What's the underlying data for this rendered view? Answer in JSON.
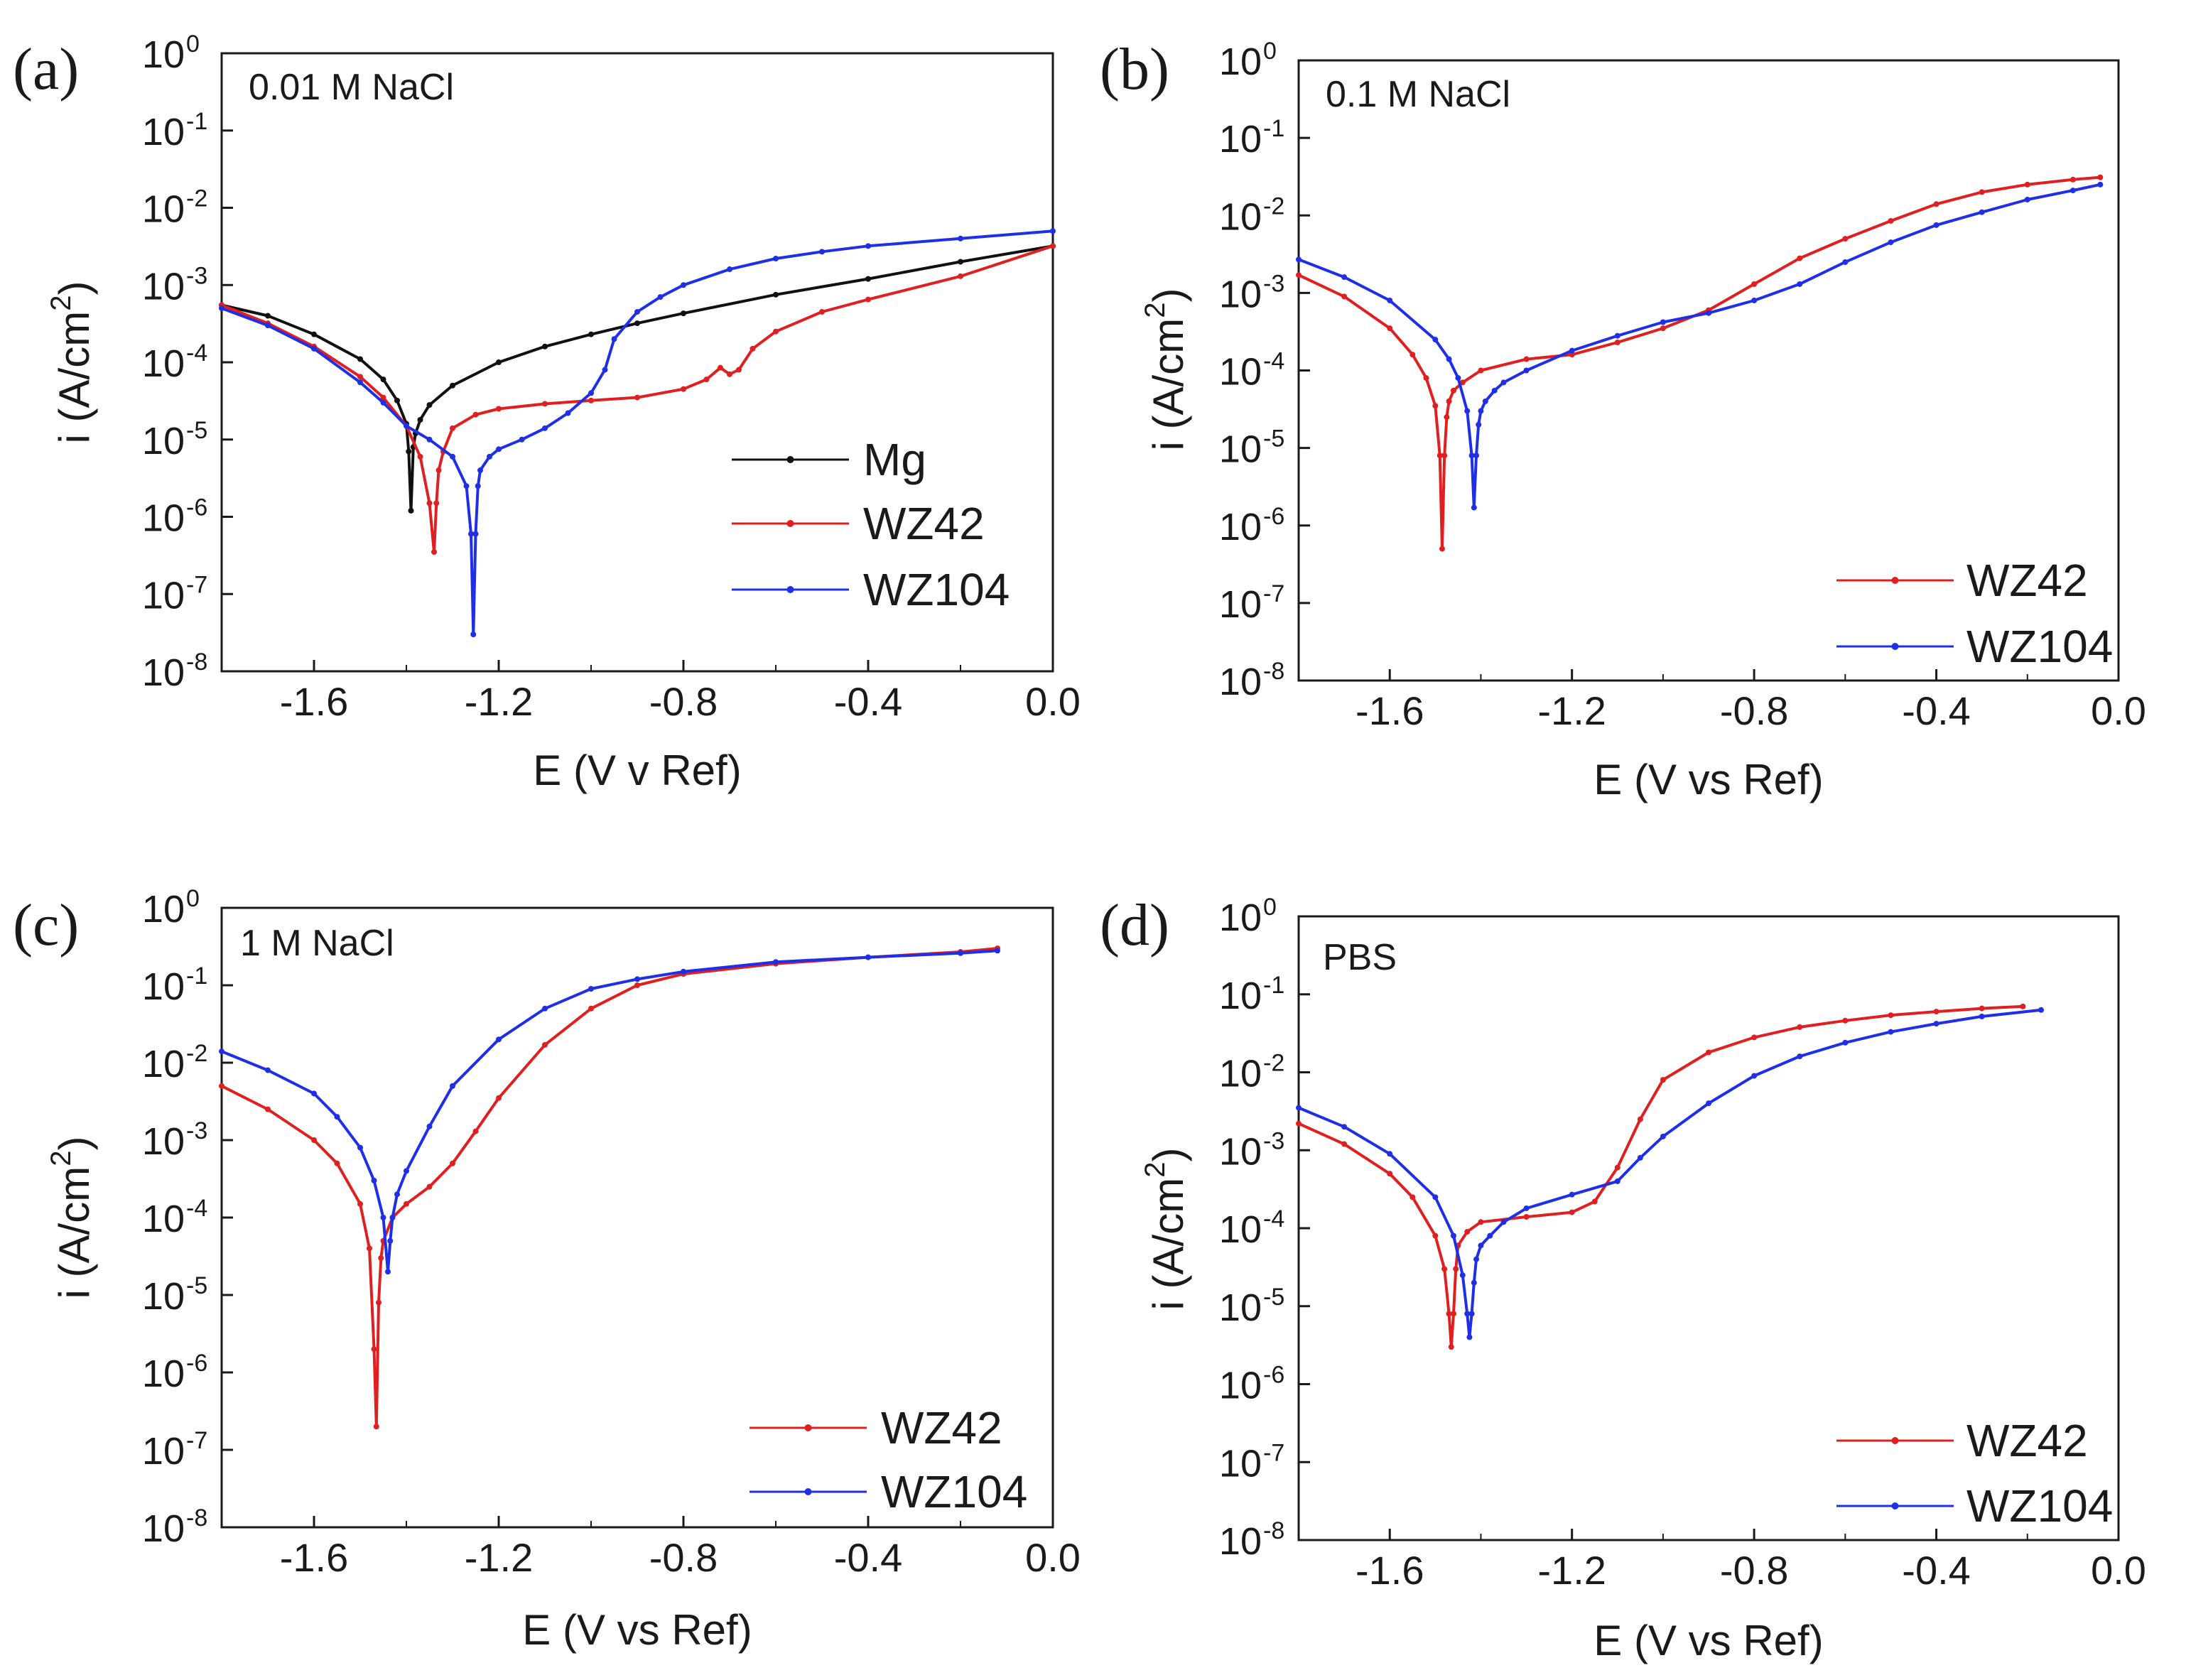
{
  "figure": {
    "background": "#ffffff"
  },
  "chart_data": [
    {
      "id": "a",
      "type": "line",
      "panel_label": "(a)",
      "annotation": "0.01 M NaCl",
      "xlabel": "E (V v Ref)",
      "ylabel": "i (A/cm",
      "ylabel_sup": "2",
      "ylabel_end": ")",
      "xlim": [
        -1.8,
        0.0
      ],
      "ylim": [
        1e-08,
        1
      ],
      "yscale": "log",
      "x_ticks": [
        -1.6,
        -1.2,
        -0.8,
        -0.4,
        0.0
      ],
      "x_tick_labels": [
        "-1.6",
        "-1.2",
        "-0.8",
        "-0.4",
        "0.0"
      ],
      "y_tick_exponents": [
        "0",
        "-1",
        "-2",
        "-3",
        "-4",
        "-5",
        "-6",
        "-7",
        "-8"
      ],
      "y_tick_base": "10",
      "grid": false,
      "legend_position": "bottom-right",
      "series": [
        {
          "name": "Mg",
          "color": "#111111",
          "x": [
            -1.8,
            -1.7,
            -1.6,
            -1.5,
            -1.45,
            -1.42,
            -1.4,
            -1.395,
            -1.39,
            -1.385,
            -1.38,
            -1.37,
            -1.35,
            -1.3,
            -1.2,
            -1.1,
            -1.0,
            -0.9,
            -0.8,
            -0.6,
            -0.4,
            -0.2,
            0.0
          ],
          "y": [
            0.00055,
            0.0004,
            0.00023,
            0.00011,
            6e-05,
            3.2e-05,
            1.6e-05,
            7e-06,
            1.2e-06,
            8e-06,
            1.2e-05,
            1.8e-05,
            2.8e-05,
            5e-05,
            0.0001,
            0.00016,
            0.00023,
            0.00032,
            0.00043,
            0.00075,
            0.0012,
            0.002,
            0.0032
          ]
        },
        {
          "name": "WZ42",
          "color": "#e02020",
          "x": [
            -1.8,
            -1.7,
            -1.6,
            -1.5,
            -1.45,
            -1.4,
            -1.37,
            -1.35,
            -1.34,
            -1.335,
            -1.33,
            -1.32,
            -1.3,
            -1.25,
            -1.2,
            -1.1,
            -1.0,
            -0.9,
            -0.8,
            -0.75,
            -0.72,
            -0.7,
            -0.68,
            -0.65,
            -0.6,
            -0.5,
            -0.4,
            -0.2,
            0.0
          ],
          "y": [
            0.00055,
            0.00032,
            0.00016,
            6.5e-05,
            3.5e-05,
            1.5e-05,
            6e-06,
            1.5e-06,
            3.5e-07,
            1.5e-06,
            4e-06,
            7e-06,
            1.4e-05,
            2.1e-05,
            2.5e-05,
            2.9e-05,
            3.2e-05,
            3.5e-05,
            4.5e-05,
            6e-05,
            8.5e-05,
            7e-05,
            8e-05,
            0.00015,
            0.00025,
            0.00045,
            0.00065,
            0.0013,
            0.0032
          ]
        },
        {
          "name": "WZ104",
          "color": "#1f2fe8",
          "x": [
            -1.8,
            -1.7,
            -1.6,
            -1.5,
            -1.45,
            -1.4,
            -1.35,
            -1.3,
            -1.27,
            -1.26,
            -1.255,
            -1.25,
            -1.245,
            -1.24,
            -1.22,
            -1.2,
            -1.15,
            -1.1,
            -1.05,
            -1.0,
            -0.97,
            -0.95,
            -0.9,
            -0.85,
            -0.8,
            -0.7,
            -0.6,
            -0.5,
            -0.4,
            -0.2,
            0.0
          ],
          "y": [
            0.0005,
            0.0003,
            0.00015,
            5.5e-05,
            3e-05,
            1.5e-05,
            1e-05,
            6e-06,
            2.5e-06,
            6e-07,
            3e-08,
            6e-07,
            2.5e-06,
            4e-06,
            6e-06,
            7.5e-06,
            1e-05,
            1.4e-05,
            2.2e-05,
            4e-05,
            8e-05,
            0.0002,
            0.00045,
            0.0007,
            0.001,
            0.0016,
            0.0022,
            0.0027,
            0.0032,
            0.004,
            0.005
          ]
        }
      ]
    },
    {
      "id": "b",
      "type": "line",
      "panel_label": "(b)",
      "annotation": "0.1 M NaCl",
      "xlabel": "E (V vs Ref)",
      "ylabel": "i (A/cm",
      "ylabel_sup": "2",
      "ylabel_end": ")",
      "xlim": [
        -1.8,
        0.0
      ],
      "ylim": [
        1e-08,
        1
      ],
      "yscale": "log",
      "x_ticks": [
        -1.6,
        -1.2,
        -0.8,
        -0.4,
        0.0
      ],
      "x_tick_labels": [
        "-1.6",
        "-1.2",
        "-0.8",
        "-0.4",
        "0.0"
      ],
      "y_tick_exponents": [
        "0",
        "-1",
        "-2",
        "-3",
        "-4",
        "-5",
        "-6",
        "-7",
        "-8"
      ],
      "y_tick_base": "10",
      "grid": false,
      "legend_position": "bottom-right",
      "series": [
        {
          "name": "WZ42",
          "color": "#e02020",
          "x": [
            -1.8,
            -1.7,
            -1.6,
            -1.55,
            -1.52,
            -1.5,
            -1.49,
            -1.485,
            -1.48,
            -1.475,
            -1.47,
            -1.46,
            -1.44,
            -1.4,
            -1.3,
            -1.2,
            -1.1,
            -1.0,
            -0.9,
            -0.8,
            -0.7,
            -0.6,
            -0.5,
            -0.4,
            -0.3,
            -0.2,
            -0.1,
            -0.04
          ],
          "y": [
            0.0017,
            0.0009,
            0.00035,
            0.00016,
            8e-05,
            3.5e-05,
            8e-06,
            5e-07,
            8e-06,
            2.5e-05,
            4e-05,
            5.5e-05,
            7e-05,
            0.0001,
            0.00014,
            0.00016,
            0.00023,
            0.00035,
            0.0006,
            0.0013,
            0.0028,
            0.005,
            0.0085,
            0.014,
            0.02,
            0.025,
            0.029,
            0.031
          ]
        },
        {
          "name": "WZ104",
          "color": "#1f2fe8",
          "x": [
            -1.8,
            -1.7,
            -1.6,
            -1.5,
            -1.47,
            -1.45,
            -1.43,
            -1.42,
            -1.415,
            -1.41,
            -1.405,
            -1.4,
            -1.39,
            -1.37,
            -1.35,
            -1.3,
            -1.2,
            -1.1,
            -1.0,
            -0.9,
            -0.8,
            -0.7,
            -0.6,
            -0.5,
            -0.4,
            -0.3,
            -0.2,
            -0.1,
            -0.04
          ],
          "y": [
            0.0027,
            0.0016,
            0.0008,
            0.00025,
            0.00014,
            8e-05,
            3e-05,
            8e-06,
            1.7e-06,
            8e-06,
            2e-05,
            3e-05,
            4e-05,
            5.5e-05,
            7e-05,
            0.0001,
            0.00018,
            0.00028,
            0.00042,
            0.00055,
            0.0008,
            0.0013,
            0.0025,
            0.0045,
            0.0075,
            0.011,
            0.016,
            0.021,
            0.025
          ]
        }
      ]
    },
    {
      "id": "c",
      "type": "line",
      "panel_label": "(c)",
      "annotation": "1 M NaCl",
      "xlabel": "E (V vs Ref)",
      "ylabel": "i (A/cm",
      "ylabel_sup": "2",
      "ylabel_end": ")",
      "xlim": [
        -1.8,
        0.0
      ],
      "ylim": [
        1e-08,
        1
      ],
      "yscale": "log",
      "x_ticks": [
        -1.6,
        -1.2,
        -0.8,
        -0.4,
        0.0
      ],
      "x_tick_labels": [
        "-1.6",
        "-1.2",
        "-0.8",
        "-0.4",
        "0.0"
      ],
      "y_tick_exponents": [
        "0",
        "-1",
        "-2",
        "-3",
        "-4",
        "-5",
        "-6",
        "-7",
        "-8"
      ],
      "y_tick_base": "10",
      "grid": false,
      "legend_position": "bottom-right",
      "series": [
        {
          "name": "WZ42",
          "color": "#e02020",
          "x": [
            -1.8,
            -1.7,
            -1.6,
            -1.55,
            -1.5,
            -1.48,
            -1.47,
            -1.465,
            -1.46,
            -1.455,
            -1.45,
            -1.43,
            -1.4,
            -1.35,
            -1.3,
            -1.25,
            -1.2,
            -1.1,
            -1.0,
            -0.9,
            -0.8,
            -0.6,
            -0.4,
            -0.2,
            -0.12
          ],
          "y": [
            0.005,
            0.0025,
            0.001,
            0.0005,
            0.00015,
            4e-05,
            2e-06,
            2e-07,
            8e-06,
            3e-05,
            5e-05,
            0.0001,
            0.00015,
            0.00025,
            0.0005,
            0.0013,
            0.0035,
            0.017,
            0.05,
            0.1,
            0.14,
            0.19,
            0.23,
            0.27,
            0.3
          ]
        },
        {
          "name": "WZ104",
          "color": "#1f2fe8",
          "x": [
            -1.8,
            -1.7,
            -1.6,
            -1.55,
            -1.5,
            -1.47,
            -1.45,
            -1.44,
            -1.435,
            -1.43,
            -1.42,
            -1.4,
            -1.35,
            -1.3,
            -1.2,
            -1.1,
            -1.0,
            -0.9,
            -0.8,
            -0.6,
            -0.4,
            -0.2,
            -0.12
          ],
          "y": [
            0.014,
            0.008,
            0.004,
            0.002,
            0.0008,
            0.0003,
            0.0001,
            2e-05,
            5e-05,
            0.0001,
            0.0002,
            0.0004,
            0.0015,
            0.005,
            0.02,
            0.05,
            0.09,
            0.12,
            0.15,
            0.2,
            0.23,
            0.26,
            0.28
          ]
        }
      ]
    },
    {
      "id": "d",
      "type": "line",
      "panel_label": "(d)",
      "annotation": "PBS",
      "xlabel": "E (V vs Ref)",
      "ylabel": "i (A/cm",
      "ylabel_sup": "2",
      "ylabel_end": ")",
      "xlim": [
        -1.8,
        0.0
      ],
      "ylim": [
        1e-08,
        1
      ],
      "yscale": "log",
      "x_ticks": [
        -1.6,
        -1.2,
        -0.8,
        -0.4,
        0.0
      ],
      "x_tick_labels": [
        "-1.6",
        "-1.2",
        "-0.8",
        "-0.4",
        "0.0"
      ],
      "y_tick_exponents": [
        "0",
        "-1",
        "-2",
        "-3",
        "-4",
        "-5",
        "-6",
        "-7",
        "-8"
      ],
      "y_tick_base": "10",
      "grid": false,
      "legend_position": "bottom-right",
      "series": [
        {
          "name": "WZ42",
          "color": "#e02020",
          "x": [
            -1.8,
            -1.7,
            -1.6,
            -1.55,
            -1.5,
            -1.48,
            -1.47,
            -1.465,
            -1.46,
            -1.455,
            -1.45,
            -1.43,
            -1.4,
            -1.3,
            -1.2,
            -1.15,
            -1.1,
            -1.05,
            -1.0,
            -0.9,
            -0.8,
            -0.7,
            -0.6,
            -0.5,
            -0.4,
            -0.3,
            -0.21
          ],
          "y": [
            0.0022,
            0.0012,
            0.0005,
            0.00025,
            8e-05,
            3e-05,
            8e-06,
            3e-06,
            8e-06,
            3e-05,
            6e-05,
            9e-05,
            0.00012,
            0.00014,
            0.00016,
            0.00022,
            0.0006,
            0.0025,
            0.008,
            0.018,
            0.028,
            0.038,
            0.046,
            0.054,
            0.06,
            0.066,
            0.07
          ]
        },
        {
          "name": "WZ104",
          "color": "#1f2fe8",
          "x": [
            -1.8,
            -1.7,
            -1.6,
            -1.5,
            -1.46,
            -1.44,
            -1.43,
            -1.425,
            -1.42,
            -1.415,
            -1.41,
            -1.4,
            -1.38,
            -1.35,
            -1.3,
            -1.2,
            -1.1,
            -1.05,
            -1.0,
            -0.9,
            -0.8,
            -0.7,
            -0.6,
            -0.5,
            -0.4,
            -0.3,
            -0.17
          ],
          "y": [
            0.0035,
            0.002,
            0.0009,
            0.00025,
            8e-05,
            2.5e-05,
            8e-06,
            4e-06,
            8e-06,
            2e-05,
            4e-05,
            6e-05,
            8e-05,
            0.00012,
            0.00018,
            0.00027,
            0.0004,
            0.0008,
            0.0015,
            0.004,
            0.009,
            0.016,
            0.024,
            0.033,
            0.042,
            0.052,
            0.063
          ]
        }
      ]
    }
  ]
}
